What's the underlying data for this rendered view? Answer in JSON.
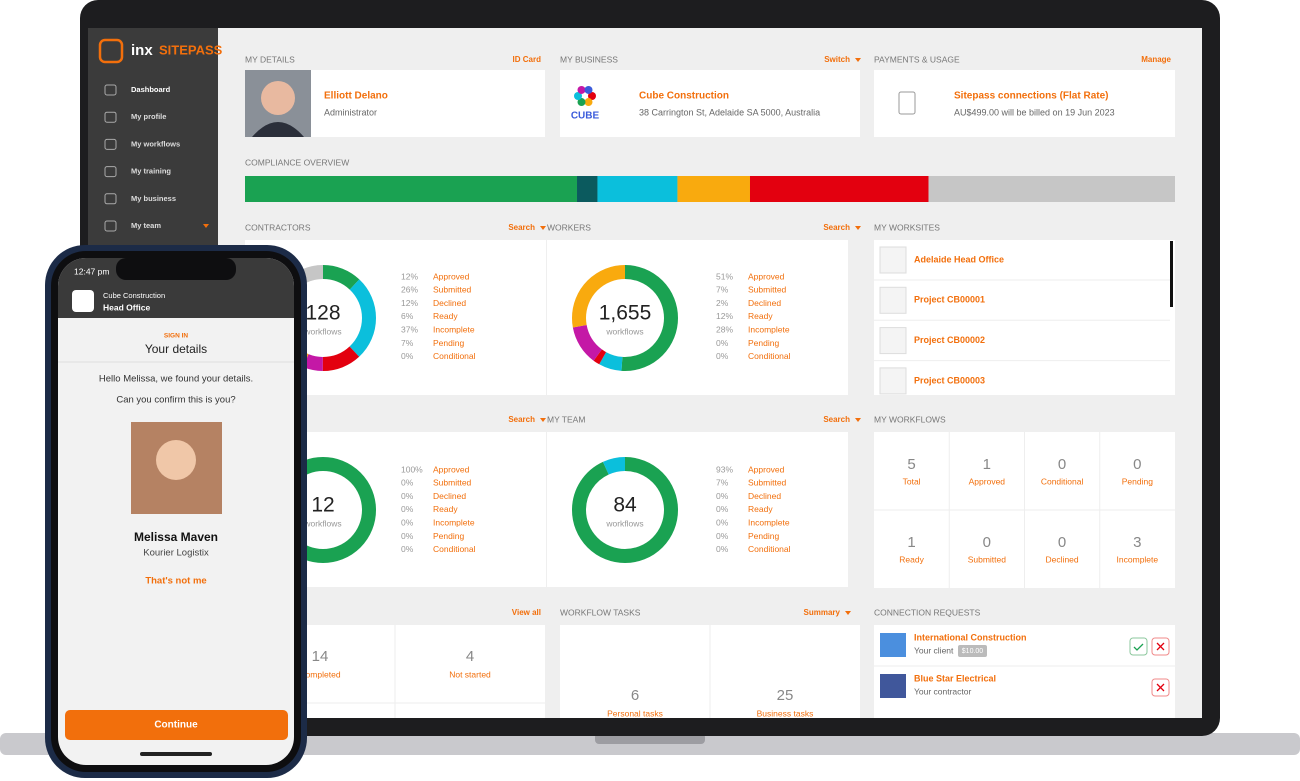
{
  "sidebar": {
    "brand_prefix": "inx",
    "brand": "SITEPASS",
    "nav": [
      "Dashboard",
      "My profile",
      "My workflows",
      "My training",
      "My business",
      "My team"
    ]
  },
  "my_details": {
    "heading": "MY DETAILS",
    "action": "ID Card",
    "name": "Elliott Delano",
    "role": "Administrator"
  },
  "my_business": {
    "heading": "MY BUSINESS",
    "action": "Switch",
    "name": "Cube Construction",
    "address": "38 Carrington St, Adelaide SA 5000, Australia",
    "logo_text": "CUBE"
  },
  "payments": {
    "heading": "PAYMENTS & USAGE",
    "action": "Manage",
    "plan": "Sitepass connections (Flat Rate)",
    "billing": "AU$499.00 will be billed on 19 Jun 2023"
  },
  "compliance": {
    "heading": "COMPLIANCE OVERVIEW",
    "segments": [
      {
        "value": 35.7,
        "color": "#1aa252"
      },
      {
        "value": 2.2,
        "color": "#0b5a5e"
      },
      {
        "value": 8.6,
        "color": "#0bbfdc"
      },
      {
        "value": 7.8,
        "color": "#f9aa0e"
      },
      {
        "value": 19.2,
        "color": "#e3000f"
      },
      {
        "value": 26.5,
        "color": "#c6c6c6"
      }
    ]
  },
  "status_colors": [
    "#1aa252",
    "#0bbfdc",
    "#e3000f",
    "#c418a6",
    "#f9aa0e",
    "#c6c6c6",
    "#666666"
  ],
  "contractors": {
    "heading": "CONTRACTORS",
    "action": "Search",
    "total": "128",
    "total_label": "workflows",
    "rows": [
      {
        "pct": 12,
        "pct_label": "12%",
        "status": "Approved"
      },
      {
        "pct": 26,
        "pct_label": "26%",
        "status": "Submitted"
      },
      {
        "pct": 12,
        "pct_label": "12%",
        "status": "Declined"
      },
      {
        "pct": 6,
        "pct_label": "6%",
        "status": "Ready"
      },
      {
        "pct": 37,
        "pct_label": "37%",
        "status": "Incomplete"
      },
      {
        "pct": 7,
        "pct_label": "7%",
        "status": "Pending"
      },
      {
        "pct": 0,
        "pct_label": "0%",
        "status": "Conditional"
      }
    ]
  },
  "workers": {
    "heading": "WORKERS",
    "action": "Search",
    "total": "1,655",
    "total_label": "workflows",
    "rows": [
      {
        "pct": 51,
        "pct_label": "51%",
        "status": "Approved"
      },
      {
        "pct": 7,
        "pct_label": "7%",
        "status": "Submitted"
      },
      {
        "pct": 2,
        "pct_label": "2%",
        "status": "Declined"
      },
      {
        "pct": 12,
        "pct_label": "12%",
        "status": "Ready"
      },
      {
        "pct": 28,
        "pct_label": "28%",
        "status": "Incomplete"
      },
      {
        "pct": 0,
        "pct_label": "0%",
        "status": "Pending"
      },
      {
        "pct": 0,
        "pct_label": "0%",
        "status": "Conditional"
      }
    ]
  },
  "third_panel": {
    "action": "Search",
    "total": "12",
    "total_label": "workflows",
    "rows": [
      {
        "pct": 100,
        "pct_label": "100%",
        "status": "Approved"
      },
      {
        "pct": 0,
        "pct_label": "0%",
        "status": "Submitted"
      },
      {
        "pct": 0,
        "pct_label": "0%",
        "status": "Declined"
      },
      {
        "pct": 0,
        "pct_label": "0%",
        "status": "Ready"
      },
      {
        "pct": 0,
        "pct_label": "0%",
        "status": "Incomplete"
      },
      {
        "pct": 0,
        "pct_label": "0%",
        "status": "Pending"
      },
      {
        "pct": 0,
        "pct_label": "0%",
        "status": "Conditional"
      }
    ]
  },
  "my_team": {
    "heading": "MY TEAM",
    "action": "Search",
    "total": "84",
    "total_label": "workflows",
    "rows": [
      {
        "pct": 93,
        "pct_label": "93%",
        "status": "Approved"
      },
      {
        "pct": 7,
        "pct_label": "7%",
        "status": "Submitted"
      },
      {
        "pct": 0,
        "pct_label": "0%",
        "status": "Declined"
      },
      {
        "pct": 0,
        "pct_label": "0%",
        "status": "Ready"
      },
      {
        "pct": 0,
        "pct_label": "0%",
        "status": "Incomplete"
      },
      {
        "pct": 0,
        "pct_label": "0%",
        "status": "Pending"
      },
      {
        "pct": 0,
        "pct_label": "0%",
        "status": "Conditional"
      }
    ]
  },
  "my_worksites": {
    "heading": "MY WORKSITES",
    "items": [
      "Adelaide Head Office",
      "Project CB00001",
      "Project CB00002",
      "Project CB00003"
    ]
  },
  "my_workflows": {
    "heading": "MY WORKFLOWS",
    "cells": [
      {
        "count": "5",
        "label": "Total"
      },
      {
        "count": "1",
        "label": "Approved"
      },
      {
        "count": "0",
        "label": "Conditional"
      },
      {
        "count": "0",
        "label": "Pending"
      },
      {
        "count": "1",
        "label": "Ready"
      },
      {
        "count": "0",
        "label": "Submitted"
      },
      {
        "count": "0",
        "label": "Declined"
      },
      {
        "count": "3",
        "label": "Incomplete"
      }
    ]
  },
  "training": {
    "action": "View all",
    "cells": [
      {
        "count": "14",
        "label": "Completed"
      },
      {
        "count": "4",
        "label": "Not started"
      }
    ]
  },
  "workflow_tasks": {
    "heading": "WORKFLOW TASKS",
    "action": "Summary",
    "cells": [
      {
        "count": "6",
        "label": "Personal tasks"
      },
      {
        "count": "25",
        "label": "Business tasks"
      }
    ]
  },
  "connection_requests": {
    "heading": "CONNECTION REQUESTS",
    "items": [
      {
        "name": "International Construction",
        "relation": "Your client",
        "badge": "$10.00"
      },
      {
        "name": "Blue Star Electrical",
        "relation": "Your contractor"
      }
    ]
  },
  "phone": {
    "time": "12:47 pm",
    "business": "Cube Construction",
    "site": "Head Office",
    "step": "SIGN IN",
    "title": "Your details",
    "greeting": "Hello Melissa, we found your details.",
    "question": "Can you confirm this is you?",
    "name": "Melissa Maven",
    "company": "Kourier Logistix",
    "reject": "That's not me",
    "confirm": "Continue"
  }
}
